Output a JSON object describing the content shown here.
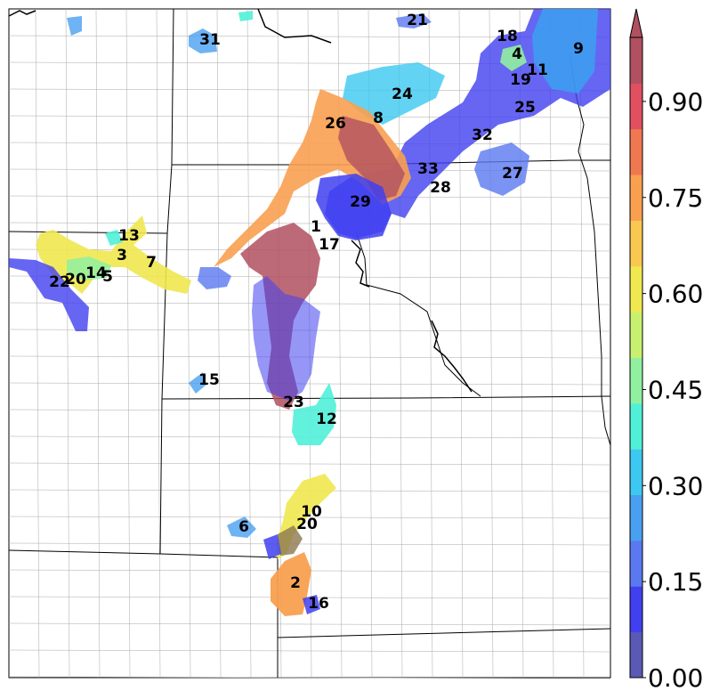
{
  "colorbar": {
    "tick_labels": [
      "0.00",
      "0.15",
      "0.30",
      "0.45",
      "0.60",
      "0.75",
      "0.90"
    ],
    "tick_values": [
      0.0,
      0.15,
      0.3,
      0.45,
      0.6,
      0.75,
      0.9
    ],
    "range": [
      0.0,
      1.0
    ],
    "extend": "max",
    "colors": [
      "#5a5ab4",
      "#4040f0",
      "#5a78f0",
      "#4aa0f0",
      "#3cc8f0",
      "#50f0d8",
      "#90f0a0",
      "#c8f070",
      "#f0e850",
      "#f8c850",
      "#f8a050",
      "#f07850",
      "#e05060",
      "#b05060"
    ]
  },
  "storm_ids": [
    {
      "id": "1",
      "level": 0.2
    },
    {
      "id": "2",
      "level": 0.8
    },
    {
      "id": "3",
      "level": 0.62
    },
    {
      "id": "4",
      "level": 0.55
    },
    {
      "id": "5",
      "level": 0.35
    },
    {
      "id": "6",
      "level": 0.4
    },
    {
      "id": "7",
      "level": 0.62
    },
    {
      "id": "8",
      "level": 0.95
    },
    {
      "id": "9",
      "level": 0.25
    },
    {
      "id": "10",
      "level": 0.62
    },
    {
      "id": "11",
      "level": 0.1
    },
    {
      "id": "12",
      "level": 0.45
    },
    {
      "id": "13",
      "level": 0.62
    },
    {
      "id": "14",
      "level": 0.58
    },
    {
      "id": "15",
      "level": 0.2
    },
    {
      "id": "16",
      "level": 0.1
    },
    {
      "id": "17",
      "level": 0.2
    },
    {
      "id": "18",
      "level": 0.15
    },
    {
      "id": "19",
      "level": 0.1
    },
    {
      "id": "20",
      "level": 0.58
    },
    {
      "id": "20",
      "level": 0.8
    },
    {
      "id": "21",
      "level": 0.2
    },
    {
      "id": "22",
      "level": 0.15
    },
    {
      "id": "23",
      "level": 0.95
    },
    {
      "id": "24",
      "level": 0.35
    },
    {
      "id": "25",
      "level": 0.1
    },
    {
      "id": "26",
      "level": 0.8
    },
    {
      "id": "27",
      "level": 0.22
    },
    {
      "id": "28",
      "level": 0.1
    },
    {
      "id": "29",
      "level": 0.15
    },
    {
      "id": "31",
      "level": 0.3
    },
    {
      "id": "32",
      "level": 0.1
    },
    {
      "id": "33",
      "level": 0.1
    }
  ]
}
